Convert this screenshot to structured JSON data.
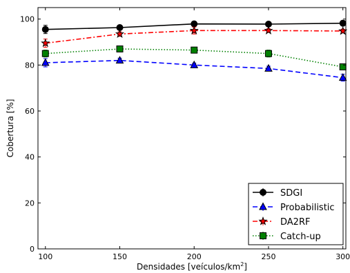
{
  "chart_data": {
    "type": "line",
    "title": "",
    "xlabel": "Densidades [veículos/km",
    "xlabel_sup": "2",
    "xlabel_end": "]",
    "ylabel": "Cobertura [%]",
    "x": [
      100,
      150,
      200,
      250,
      300
    ],
    "xlim": [
      95,
      302
    ],
    "ylim": [
      0,
      105
    ],
    "xticks": [
      100,
      150,
      200,
      250,
      300
    ],
    "yticks": [
      0,
      20,
      40,
      60,
      80,
      100
    ],
    "grid": false,
    "legend_position": "bottom-right",
    "series": [
      {
        "name": "SDGI",
        "values": [
          95.5,
          96.3,
          97.9,
          97.8,
          98.2
        ],
        "errors": [
          1.8,
          0.8,
          1.0,
          0.9,
          0.8
        ],
        "color": "#000000",
        "line_style": "solid",
        "marker": "circle"
      },
      {
        "name": "Probabilistic",
        "values": [
          81.0,
          82.0,
          80.0,
          78.5,
          74.5
        ],
        "errors": [
          1.8,
          1.0,
          0.8,
          1.0,
          1.5
        ],
        "color": "#0000ff",
        "line_style": "dashed",
        "marker": "triangle"
      },
      {
        "name": "DA2RF",
        "values": [
          89.5,
          93.5,
          95.0,
          95.0,
          94.8
        ],
        "errors": [
          1.8,
          1.0,
          1.5,
          0.8,
          0.8
        ],
        "color": "#ff0000",
        "line_style": "dashdot",
        "marker": "star"
      },
      {
        "name": "Catch-up",
        "values": [
          85.0,
          87.0,
          86.5,
          85.0,
          79.2
        ],
        "errors": [
          1.5,
          0.8,
          1.0,
          1.5,
          1.0
        ],
        "color": "#008000",
        "line_style": "dotted",
        "marker": "square"
      }
    ]
  }
}
